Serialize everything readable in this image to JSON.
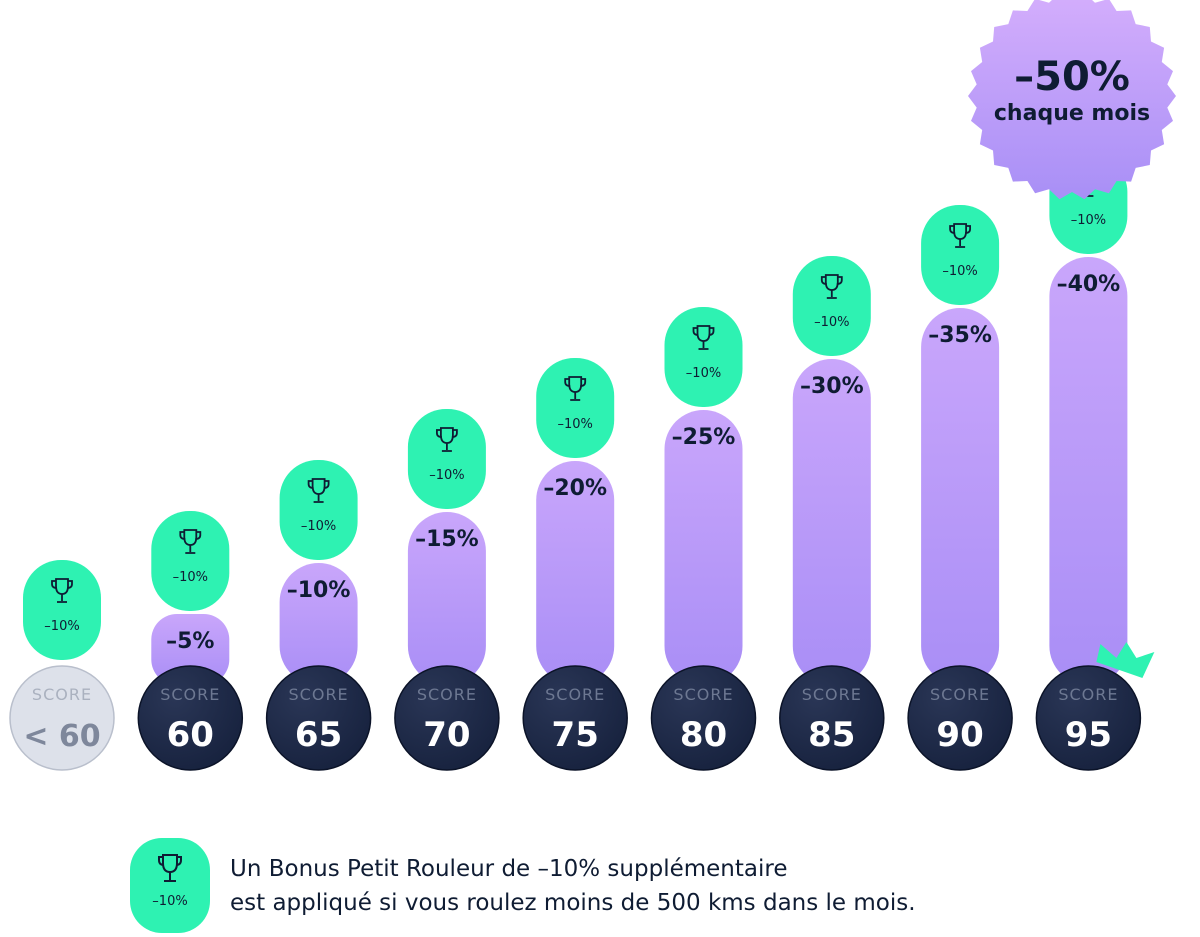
{
  "chart_data": {
    "type": "bar",
    "title": "",
    "xlabel": "",
    "ylabel": "",
    "score_caption": "SCORE",
    "categories": [
      "< 60",
      "60",
      "65",
      "70",
      "75",
      "80",
      "85",
      "90",
      "95"
    ],
    "values": [
      0,
      5,
      10,
      15,
      20,
      25,
      30,
      35,
      40
    ],
    "value_labels": [
      "",
      "–5%",
      "–10%",
      "–15%",
      "–20%",
      "–25%",
      "–30%",
      "–35%",
      "–40%"
    ],
    "bonus_label": "–10%",
    "bonus_value": 10,
    "ylim": [
      0,
      50
    ],
    "grid": false,
    "max_badge": {
      "value": "–50%",
      "caption": "chaque mois"
    }
  },
  "legend": {
    "pill_label": "–10%",
    "line1": "Un Bonus Petit Rouleur de –10% supplémentaire",
    "line2": "est appliqué si vous roulez moins de 500 kms dans le mois."
  },
  "colors": {
    "bar": "#c9a6fb",
    "bar_dark": "#a98ef6",
    "bonus": "#2ef2b2",
    "circle": "#16213d",
    "circle_light": "#dde1ea",
    "badge": "#c5a2fb",
    "crown": "#2ef2b2",
    "text_dark": "#0f1c33"
  },
  "icons": {
    "trophy": "trophy-icon",
    "crown": "crown-icon"
  }
}
